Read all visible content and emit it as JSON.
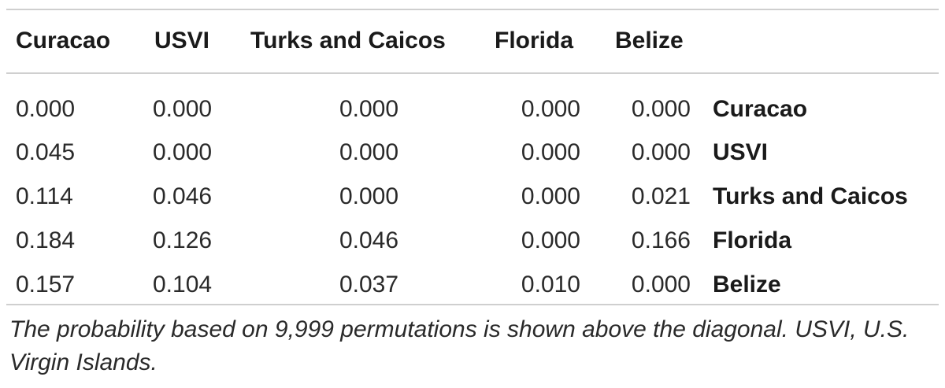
{
  "table": {
    "columns": [
      "Curacao",
      "USVI",
      "Turks and Caicos",
      "Florida",
      "Belize"
    ],
    "rows": [
      {
        "values": [
          "0.000",
          "0.000",
          "0.000",
          "0.000",
          "0.000"
        ],
        "label": "Curacao"
      },
      {
        "values": [
          "0.045",
          "0.000",
          "0.000",
          "0.000",
          "0.000"
        ],
        "label": "USVI"
      },
      {
        "values": [
          "0.114",
          "0.046",
          "0.000",
          "0.000",
          "0.021"
        ],
        "label": "Turks and Caicos"
      },
      {
        "values": [
          "0.184",
          "0.126",
          "0.046",
          "0.000",
          "0.166"
        ],
        "label": "Florida"
      },
      {
        "values": [
          "0.157",
          "0.104",
          "0.037",
          "0.010",
          "0.000"
        ],
        "label": "Belize"
      }
    ]
  },
  "footnote": "The probability based on 9,999 permutations is shown above the diagonal. USVI, U.S. Virgin Islands.",
  "colors": {
    "rule": "#cfcfcf",
    "text": "#1a1a1a"
  }
}
